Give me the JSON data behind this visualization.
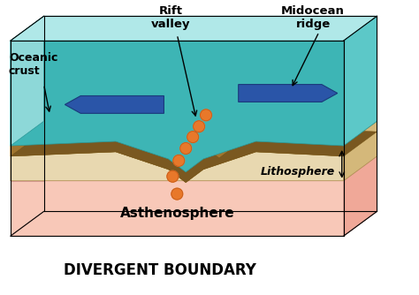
{
  "title": "DIVERGENT BOUNDARY",
  "title_fontsize": 12,
  "title_fontweight": "bold",
  "labels": {
    "oceanic_crust": "Oceanic\ncrust",
    "rift_valley": "Rift\nvalley",
    "midocean_ridge": "Midocean\nridge",
    "lithosphere": "Lithosphere",
    "asthenosphere": "Asthenosphere"
  },
  "colors": {
    "ocean_deep": "#3db5b5",
    "ocean_mid": "#5cc8c8",
    "ocean_light": "#8dd8d8",
    "ocean_top_face": "#b0e8e8",
    "ocean_back": "#6ecece",
    "crust_dark": "#7a5820",
    "crust_mid": "#a07530",
    "crust_light": "#c89848",
    "lith_cream": "#e8d8b0",
    "lith_tan": "#d4b87a",
    "asth_pink": "#f0a898",
    "asth_light": "#f8c8b8",
    "asth_peach": "#f5b8a0",
    "plate_blue_dark": "#1a3a7a",
    "plate_blue": "#2a55a8",
    "plate_blue_light": "#4878c8",
    "magma_orange": "#e8782a",
    "magma_dark": "#c05818",
    "background": "#ffffff",
    "black": "#000000"
  }
}
